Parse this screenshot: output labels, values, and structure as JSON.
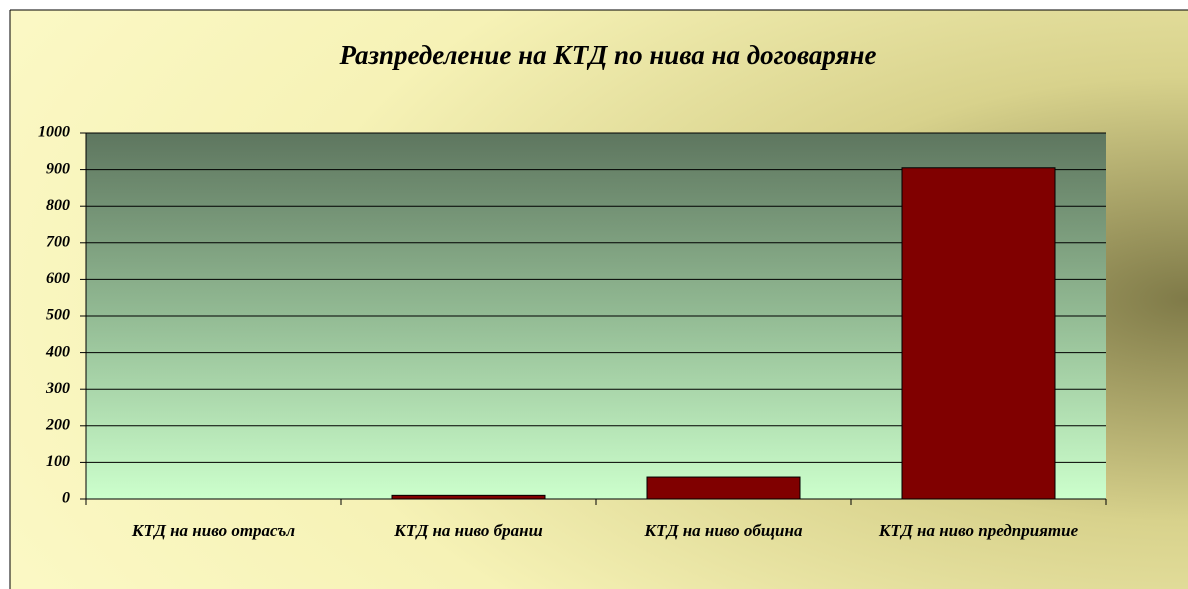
{
  "chart_data": {
    "type": "bar",
    "title": "Разпределение на КТД по нива на договаряне",
    "categories": [
      "КТД на ниво отрасъл",
      "КТД на ниво бранш",
      "КТД на ниво община",
      "КТД на ниво предприятие"
    ],
    "values": [
      0,
      10,
      60,
      905
    ],
    "color": "#800000",
    "ylim": [
      0,
      1000
    ],
    "yticks": [
      0,
      100,
      200,
      300,
      400,
      500,
      600,
      700,
      800,
      900,
      1000
    ],
    "grid": true
  }
}
